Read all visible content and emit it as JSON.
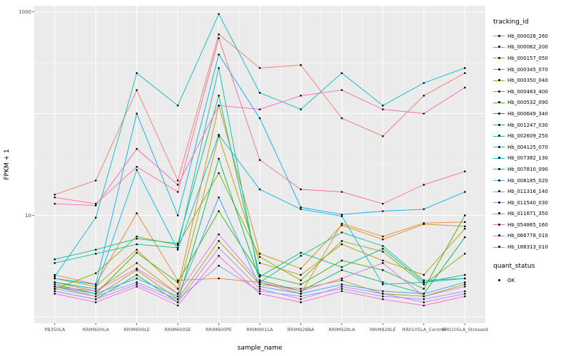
{
  "legend": {
    "tracking_title": "tracking_id",
    "quant_title": "quant_status",
    "quant_value": "OK"
  },
  "style": {
    "panel_bg": "#EBEBEB",
    "grid_major": "#FFFFFF",
    "grid_minor": "#F7F7F7",
    "tick_text": "#4D4D4D",
    "point_color": "#000000"
  },
  "chart_data": {
    "type": "line",
    "title": "",
    "xlabel": "sample_name",
    "ylabel": "FPKM + 1",
    "y_scale": "log10",
    "ylim": [
      1,
      1000
    ],
    "grid": true,
    "legend_position": "right",
    "y_ticks": [
      {
        "label": "1000",
        "value": 1000
      },
      {
        "label": "10",
        "value": 10
      }
    ],
    "categories": [
      "PB350LA",
      "RRIM600LA",
      "RRIM600LE",
      "RRIM600SE",
      "RRIM600PE",
      "RRIM901LA",
      "RRIM928BA",
      "RRIM928LA",
      "RRIM928LE",
      "RRII105LA_Control",
      "RRII105LA_Stressed"
    ],
    "series": [
      {
        "name": "Hb_000028_260",
        "color": "#F8766D",
        "values": [
          16,
          22,
          170,
          22,
          600,
          280,
          300,
          90,
          60,
          150,
          250
        ]
      },
      {
        "name": "Hb_000062_200",
        "color": "#EA8331",
        "values": [
          2.6,
          2.1,
          10.5,
          2.3,
          2.4,
          2.2,
          1.7,
          8.3,
          6.2,
          8.4,
          8.6
        ]
      },
      {
        "name": "Hb_000157_050",
        "color": "#D89000",
        "values": [
          2.4,
          2.0,
          4.6,
          1.9,
          120,
          4.2,
          3.0,
          8.0,
          5.8,
          8.2,
          7.8
        ]
      },
      {
        "name": "Hb_000345_070",
        "color": "#C09B00",
        "values": [
          2.2,
          1.8,
          3.4,
          1.7,
          60,
          3.4,
          2.6,
          5.2,
          3.6,
          2.6,
          7.4
        ]
      },
      {
        "name": "Hb_000350_040",
        "color": "#A3A500",
        "values": [
          2.0,
          1.6,
          2.9,
          1.5,
          5.6,
          2.1,
          1.9,
          2.3,
          1.7,
          1.6,
          2.1
        ]
      },
      {
        "name": "Hb_000483_400",
        "color": "#7CAE00",
        "values": [
          1.9,
          2.7,
          6.2,
          5.1,
          26,
          3.9,
          2.3,
          5.6,
          4.4,
          2.1,
          4.2
        ]
      },
      {
        "name": "Hb_000532_090",
        "color": "#39B600",
        "values": [
          2.1,
          1.7,
          4.3,
          2.2,
          11,
          2.6,
          2.1,
          3.6,
          2.9,
          1.9,
          10
        ]
      },
      {
        "name": "Hb_000649_340",
        "color": "#00BB4E",
        "values": [
          1.8,
          1.5,
          2.6,
          1.4,
          36,
          2.3,
          1.8,
          2.9,
          2.2,
          1.7,
          6.1
        ]
      },
      {
        "name": "Hb_001247_030",
        "color": "#00BF7D",
        "values": [
          3.7,
          4.6,
          5.9,
          5.3,
          150,
          2.5,
          4.3,
          3.1,
          4.7,
          2.2,
          2.6
        ]
      },
      {
        "name": "Hb_002609_250",
        "color": "#00C1A3",
        "values": [
          3.4,
          4.2,
          5.2,
          4.8,
          280,
          2.2,
          4.0,
          6.8,
          5.0,
          2.3,
          2.4
        ]
      },
      {
        "name": "Hb_004125_070",
        "color": "#00BFC4",
        "values": [
          2.5,
          9.5,
          250,
          120,
          950,
          160,
          110,
          250,
          120,
          200,
          280
        ]
      },
      {
        "name": "Hb_007382_130",
        "color": "#00BAE0",
        "values": [
          2.2,
          1.9,
          28,
          4.6,
          62,
          18,
          11.5,
          9.8,
          2.1,
          2.2,
          2.4
        ]
      },
      {
        "name": "Hb_007810_090",
        "color": "#00B0F6",
        "values": [
          2.4,
          2.1,
          100,
          10,
          380,
          90,
          12,
          10.2,
          11,
          11.5,
          17
        ]
      },
      {
        "name": "Hb_008185_020",
        "color": "#35A2FF",
        "values": [
          2.0,
          1.7,
          2.4,
          1.6,
          15,
          2.0,
          1.7,
          2.1,
          1.8,
          1.7,
          2.2
        ]
      },
      {
        "name": "Hb_011316_140",
        "color": "#9590FF",
        "values": [
          1.9,
          1.6,
          2.2,
          1.5,
          3.2,
          1.8,
          1.6,
          1.9,
          1.6,
          1.5,
          1.8
        ]
      },
      {
        "name": "Hb_011540_030",
        "color": "#C77CFF",
        "values": [
          1.8,
          1.5,
          2.1,
          1.4,
          4.8,
          1.9,
          1.5,
          2.0,
          1.7,
          1.4,
          1.7
        ]
      },
      {
        "name": "Hb_011671_350",
        "color": "#E76BF3",
        "values": [
          2.0,
          1.8,
          3.0,
          1.7,
          6.5,
          2.2,
          1.8,
          2.4,
          3.4,
          1.6,
          2.0
        ]
      },
      {
        "name": "Hb_054865_160",
        "color": "#FA62DB",
        "values": [
          1.7,
          1.4,
          2.0,
          1.3,
          4.0,
          1.7,
          1.4,
          1.8,
          1.5,
          1.3,
          1.6
        ]
      },
      {
        "name": "Hb_066778_010",
        "color": "#FF62BC",
        "values": [
          13,
          12.5,
          45,
          20,
          120,
          110,
          150,
          170,
          110,
          100,
          180
        ]
      },
      {
        "name": "Hb_188313_010",
        "color": "#FF6A98",
        "values": [
          15,
          13,
          30,
          17,
          550,
          35,
          18,
          17,
          13,
          20,
          27
        ]
      }
    ]
  }
}
